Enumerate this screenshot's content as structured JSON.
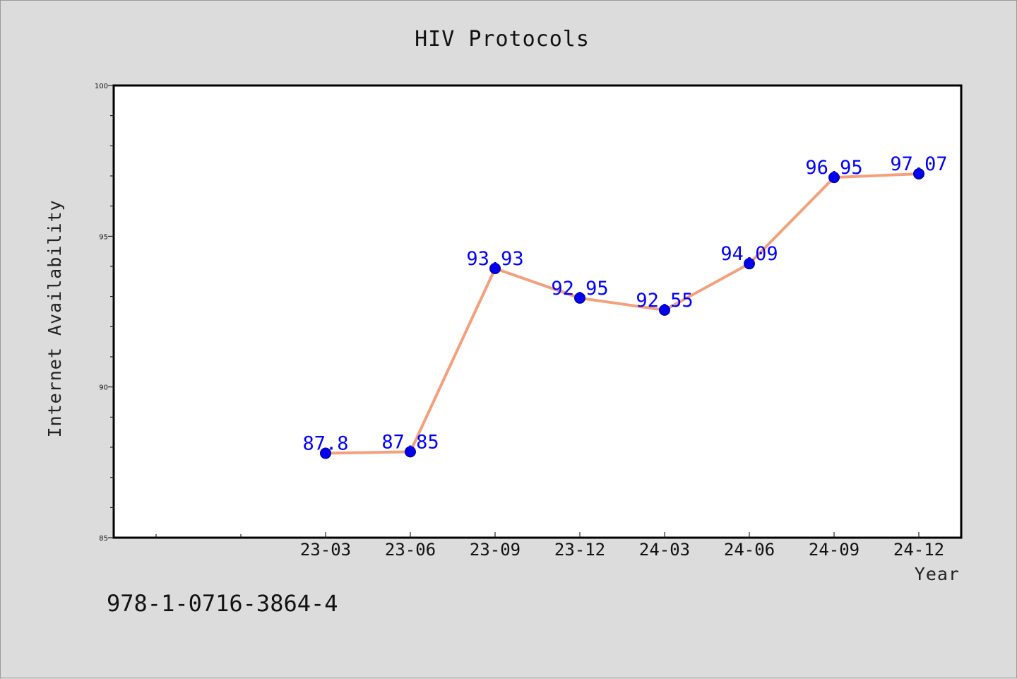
{
  "chart_data": {
    "type": "line",
    "title": "HIV Protocols",
    "xlabel": "Year",
    "ylabel": "Internet Availability",
    "categories": [
      "23-03",
      "23-06",
      "23-09",
      "23-12",
      "24-03",
      "24-06",
      "24-09",
      "24-12"
    ],
    "series": [
      {
        "values": [
          87.8,
          87.85,
          93.93,
          92.95,
          92.55,
          94.09,
          96.95,
          97.07
        ],
        "data_labels": [
          "87.8",
          "87.85",
          "93.93",
          "92.95",
          "92.55",
          "94.09",
          "96.95",
          "97.07"
        ],
        "line_color": "#f4a07c",
        "marker_color": "#0000ee",
        "label_color": "#0000ff"
      }
    ],
    "ylim": [
      85,
      100
    ],
    "yticks": [
      "85",
      "90",
      "95",
      "100"
    ],
    "grid": false,
    "legend": "none"
  },
  "footnote": "978-1-0716-3864-4"
}
